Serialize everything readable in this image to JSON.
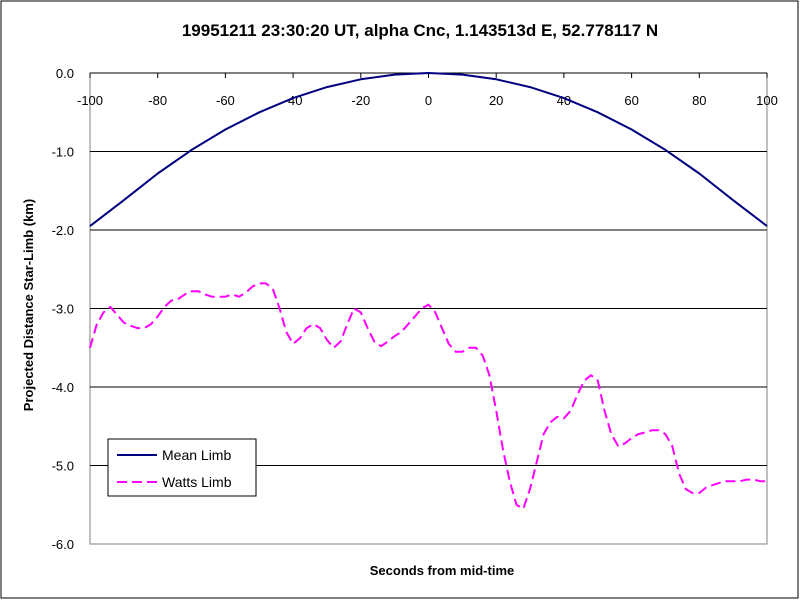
{
  "chart_data": {
    "type": "line",
    "title": "19951211 23:30:20 UT, alpha Cnc, 1.143513d E, 52.778117 N",
    "xlabel": "Seconds from mid-time",
    "ylabel": "Projected Distance Star-Limb (km)",
    "xlim": [
      -100,
      100
    ],
    "ylim": [
      -6.0,
      0.0
    ],
    "x_ticks": [
      "-100",
      "-80",
      "-60",
      "-40",
      "-20",
      "0",
      "20",
      "40",
      "60",
      "80",
      "100"
    ],
    "y_ticks": [
      "0.0",
      "-1.0",
      "-2.0",
      "-3.0",
      "-4.0",
      "-5.0",
      "-6.0"
    ],
    "grid": "horizontal",
    "legend_position": "bottom-left",
    "series": [
      {
        "name": "Mean Limb",
        "color": "#000080",
        "style": "solid",
        "x": [
          -100,
          -90,
          -80,
          -70,
          -60,
          -50,
          -40,
          -30,
          -20,
          -10,
          0,
          10,
          20,
          30,
          40,
          50,
          60,
          70,
          80,
          90,
          100
        ],
        "y": [
          -1.95,
          -1.62,
          -1.28,
          -0.98,
          -0.72,
          -0.5,
          -0.32,
          -0.18,
          -0.08,
          -0.02,
          0.0,
          -0.02,
          -0.08,
          -0.18,
          -0.32,
          -0.5,
          -0.72,
          -0.98,
          -1.28,
          -1.62,
          -1.95
        ]
      },
      {
        "name": "Watts Limb",
        "color": "#ff00ff",
        "style": "dashed",
        "x": [
          -100,
          -98,
          -96,
          -94,
          -92,
          -90,
          -88,
          -86,
          -84,
          -82,
          -80,
          -78,
          -76,
          -74,
          -72,
          -70,
          -68,
          -66,
          -64,
          -62,
          -60,
          -58,
          -56,
          -54,
          -52,
          -50,
          -48,
          -46,
          -44,
          -42,
          -40,
          -38,
          -36,
          -34,
          -32,
          -30,
          -28,
          -26,
          -24,
          -22,
          -20,
          -18,
          -16,
          -14,
          -12,
          -10,
          -8,
          -6,
          -4,
          -2,
          0,
          2,
          4,
          6,
          8,
          10,
          12,
          14,
          16,
          18,
          20,
          22,
          24,
          26,
          28,
          30,
          32,
          34,
          36,
          38,
          40,
          42,
          44,
          46,
          48,
          50,
          52,
          54,
          56,
          58,
          60,
          62,
          64,
          66,
          68,
          70,
          72,
          74,
          76,
          78,
          80,
          82,
          84,
          86,
          88,
          90,
          92,
          94,
          96,
          98,
          100
        ],
        "y": [
          -3.5,
          -3.2,
          -3.05,
          -2.98,
          -3.08,
          -3.18,
          -3.22,
          -3.25,
          -3.25,
          -3.2,
          -3.1,
          -2.98,
          -2.9,
          -2.88,
          -2.82,
          -2.78,
          -2.78,
          -2.82,
          -2.85,
          -2.85,
          -2.85,
          -2.82,
          -2.85,
          -2.8,
          -2.72,
          -2.68,
          -2.68,
          -2.75,
          -3.0,
          -3.3,
          -3.45,
          -3.38,
          -3.25,
          -3.2,
          -3.25,
          -3.4,
          -3.5,
          -3.42,
          -3.2,
          -3.0,
          -3.05,
          -3.25,
          -3.42,
          -3.48,
          -3.42,
          -3.35,
          -3.3,
          -3.2,
          -3.1,
          -3.0,
          -2.95,
          -3.05,
          -3.25,
          -3.45,
          -3.55,
          -3.55,
          -3.5,
          -3.5,
          -3.6,
          -3.85,
          -4.3,
          -4.8,
          -5.2,
          -5.5,
          -5.55,
          -5.3,
          -4.95,
          -4.6,
          -4.45,
          -4.38,
          -4.4,
          -4.3,
          -4.1,
          -3.92,
          -3.85,
          -3.92,
          -4.3,
          -4.6,
          -4.75,
          -4.72,
          -4.65,
          -4.6,
          -4.58,
          -4.55,
          -4.55,
          -4.6,
          -4.75,
          -5.1,
          -5.3,
          -5.35,
          -5.35,
          -5.28,
          -5.25,
          -5.22,
          -5.2,
          -5.2,
          -5.2,
          -5.18,
          -5.18,
          -5.2,
          -5.2
        ]
      }
    ]
  }
}
